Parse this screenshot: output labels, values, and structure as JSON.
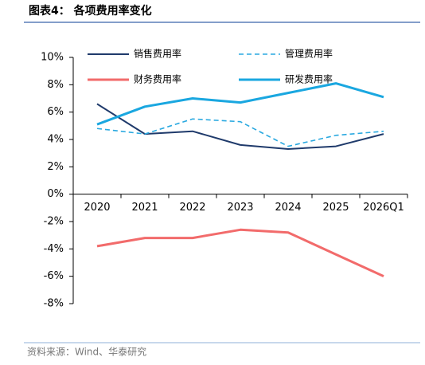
{
  "header": {
    "title": "图表4：  各项费用率变化"
  },
  "chart_data": {
    "type": "line",
    "categories": [
      "2020",
      "2021",
      "2022",
      "2023",
      "2024",
      "2025",
      "2026Q1"
    ],
    "series": [
      {
        "name": "销售费用率",
        "color": "#1f3a6b",
        "width": 2,
        "dash": false,
        "values": [
          6.6,
          4.4,
          4.6,
          3.6,
          3.3,
          3.5,
          4.4
        ]
      },
      {
        "name": "管理费用率",
        "color": "#2aa9e0",
        "width": 1.6,
        "dash": true,
        "values": [
          4.8,
          4.4,
          5.5,
          5.3,
          3.5,
          4.3,
          4.6
        ]
      },
      {
        "name": "财务费用率",
        "color": "#f26b6b",
        "width": 3,
        "dash": false,
        "values": [
          -3.8,
          -3.2,
          -3.2,
          -2.6,
          -2.8,
          -4.4,
          -6.0
        ]
      },
      {
        "name": "研发费用率",
        "color": "#1aa7e0",
        "width": 3,
        "dash": false,
        "values": [
          5.1,
          6.4,
          7.0,
          6.7,
          7.4,
          8.1,
          7.1
        ]
      }
    ],
    "ylim": [
      -8,
      10
    ],
    "yticks": [
      {
        "value": -8,
        "label": "-8%"
      },
      {
        "value": -6,
        "label": "-6%"
      },
      {
        "value": -4,
        "label": "-4%"
      },
      {
        "value": -2,
        "label": "-2%"
      },
      {
        "value": 0,
        "label": "0%"
      },
      {
        "value": 2,
        "label": "2%"
      },
      {
        "value": 4,
        "label": "4%"
      },
      {
        "value": 6,
        "label": "6%"
      },
      {
        "value": 8,
        "label": "8%"
      },
      {
        "value": 10,
        "label": "10%"
      }
    ],
    "grid": false
  },
  "footer": {
    "source": "资料来源：Wind、华泰研究"
  }
}
